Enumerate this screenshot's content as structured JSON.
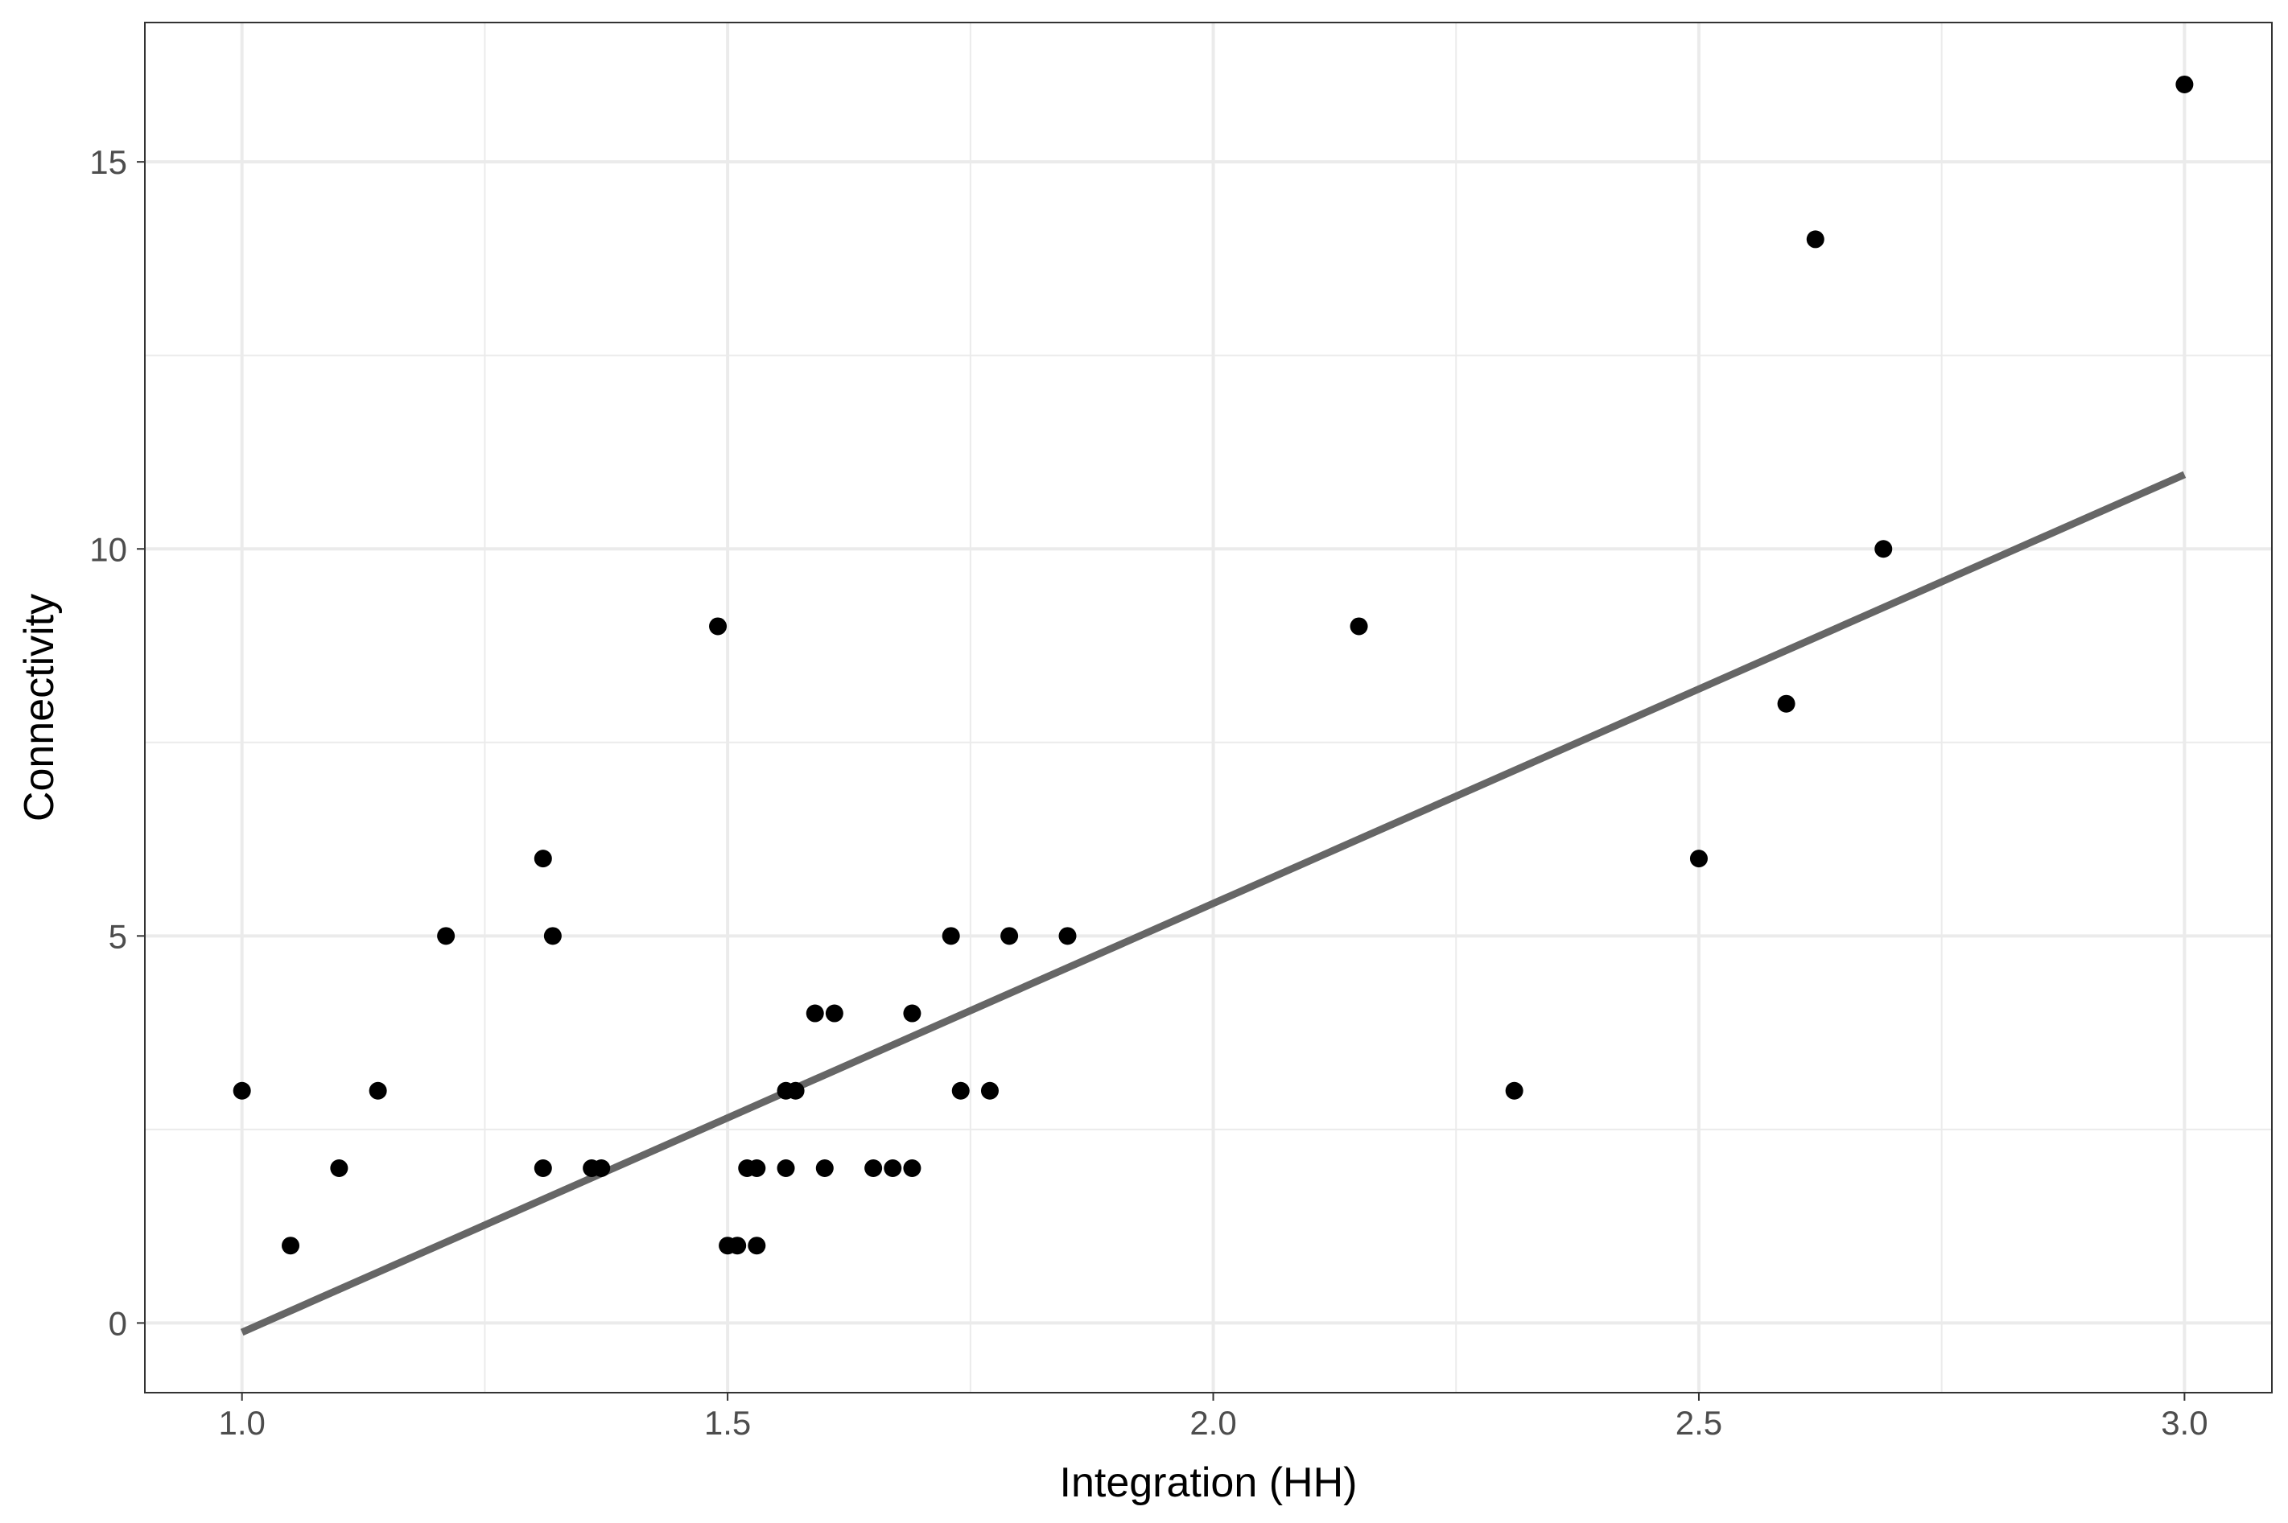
{
  "chart_data": {
    "type": "scatter",
    "title": "",
    "xlabel": "Integration (HH)",
    "ylabel": "Connectivity",
    "xlim": [
      0.9,
      3.09
    ],
    "ylim": [
      -0.9,
      16.8
    ],
    "grid": true,
    "x_ticks": [
      1.0,
      1.5,
      2.0,
      2.5,
      3.0
    ],
    "x_tick_labels": [
      "1.0",
      "1.5",
      "2.0",
      "2.5",
      "3.0"
    ],
    "y_ticks": [
      0,
      5,
      10,
      15
    ],
    "y_tick_labels": [
      "0",
      "5",
      "10",
      "15"
    ],
    "points": [
      {
        "x": 1.0,
        "y": 3
      },
      {
        "x": 1.05,
        "y": 1
      },
      {
        "x": 1.1,
        "y": 2
      },
      {
        "x": 1.14,
        "y": 3
      },
      {
        "x": 1.21,
        "y": 5
      },
      {
        "x": 1.31,
        "y": 6
      },
      {
        "x": 1.31,
        "y": 2
      },
      {
        "x": 1.32,
        "y": 5
      },
      {
        "x": 1.36,
        "y": 2
      },
      {
        "x": 1.37,
        "y": 2
      },
      {
        "x": 1.49,
        "y": 9
      },
      {
        "x": 1.5,
        "y": 1
      },
      {
        "x": 1.51,
        "y": 1
      },
      {
        "x": 1.52,
        "y": 2
      },
      {
        "x": 1.53,
        "y": 2
      },
      {
        "x": 1.53,
        "y": 1
      },
      {
        "x": 1.56,
        "y": 3
      },
      {
        "x": 1.56,
        "y": 2
      },
      {
        "x": 1.57,
        "y": 3
      },
      {
        "x": 1.59,
        "y": 4
      },
      {
        "x": 1.6,
        "y": 2
      },
      {
        "x": 1.61,
        "y": 4
      },
      {
        "x": 1.65,
        "y": 2
      },
      {
        "x": 1.67,
        "y": 2
      },
      {
        "x": 1.69,
        "y": 2
      },
      {
        "x": 1.69,
        "y": 4
      },
      {
        "x": 1.73,
        "y": 5
      },
      {
        "x": 1.74,
        "y": 3
      },
      {
        "x": 1.77,
        "y": 3
      },
      {
        "x": 1.79,
        "y": 5
      },
      {
        "x": 1.85,
        "y": 5
      },
      {
        "x": 2.15,
        "y": 9
      },
      {
        "x": 2.31,
        "y": 3
      },
      {
        "x": 2.5,
        "y": 6
      },
      {
        "x": 2.59,
        "y": 8
      },
      {
        "x": 2.62,
        "y": 14
      },
      {
        "x": 2.69,
        "y": 10
      },
      {
        "x": 3.0,
        "y": 16
      }
    ],
    "trend_line": {
      "x": [
        1.0,
        3.0
      ],
      "y": [
        -0.12,
        10.96
      ]
    },
    "colors": {
      "points": "#000000",
      "trend_line": "#666666",
      "grid": "#ebebeb",
      "panel_border": "#333333"
    }
  }
}
